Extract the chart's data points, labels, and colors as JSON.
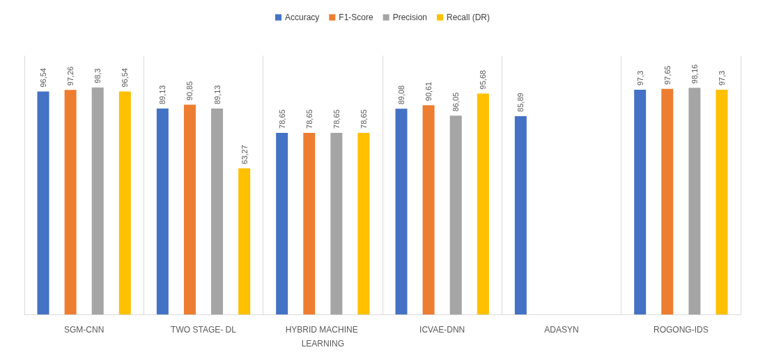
{
  "chart_data": {
    "type": "bar",
    "categories": [
      "SGM-CNN",
      "TWO STAGE- DL",
      "HYBRID MACHINE LEARNING",
      "ICVAE-DNN",
      "ADASYN",
      "ROGONG-IDS"
    ],
    "series": [
      {
        "name": "Accuracy",
        "color": "#4472c4",
        "values": [
          96.54,
          89.13,
          78.65,
          89.08,
          85.89,
          97.3
        ],
        "value_labels": [
          "96,54",
          "89,13",
          "78,65",
          "89,08",
          "85,89",
          "97,3"
        ]
      },
      {
        "name": "F1-Score",
        "color": "#ed7d31",
        "values": [
          97.26,
          90.85,
          78.65,
          90.61,
          null,
          97.65
        ],
        "value_labels": [
          "97,26",
          "90,85",
          "78,65",
          "90,61",
          null,
          "97,65"
        ]
      },
      {
        "name": "Precision",
        "color": "#a5a5a5",
        "values": [
          98.3,
          89.13,
          78.65,
          86.05,
          null,
          98.16
        ],
        "value_labels": [
          "98,3",
          "89,13",
          "78,65",
          "86,05",
          null,
          "98,16"
        ]
      },
      {
        "name": "Recall (DR)",
        "color": "#ffc000",
        "values": [
          96.54,
          63.27,
          78.65,
          95.68,
          null,
          97.3
        ],
        "value_labels": [
          "96,54",
          "63,27",
          "78,65",
          "95,68",
          null,
          "97,3"
        ]
      }
    ],
    "legend": "top",
    "grid": "x"
  }
}
